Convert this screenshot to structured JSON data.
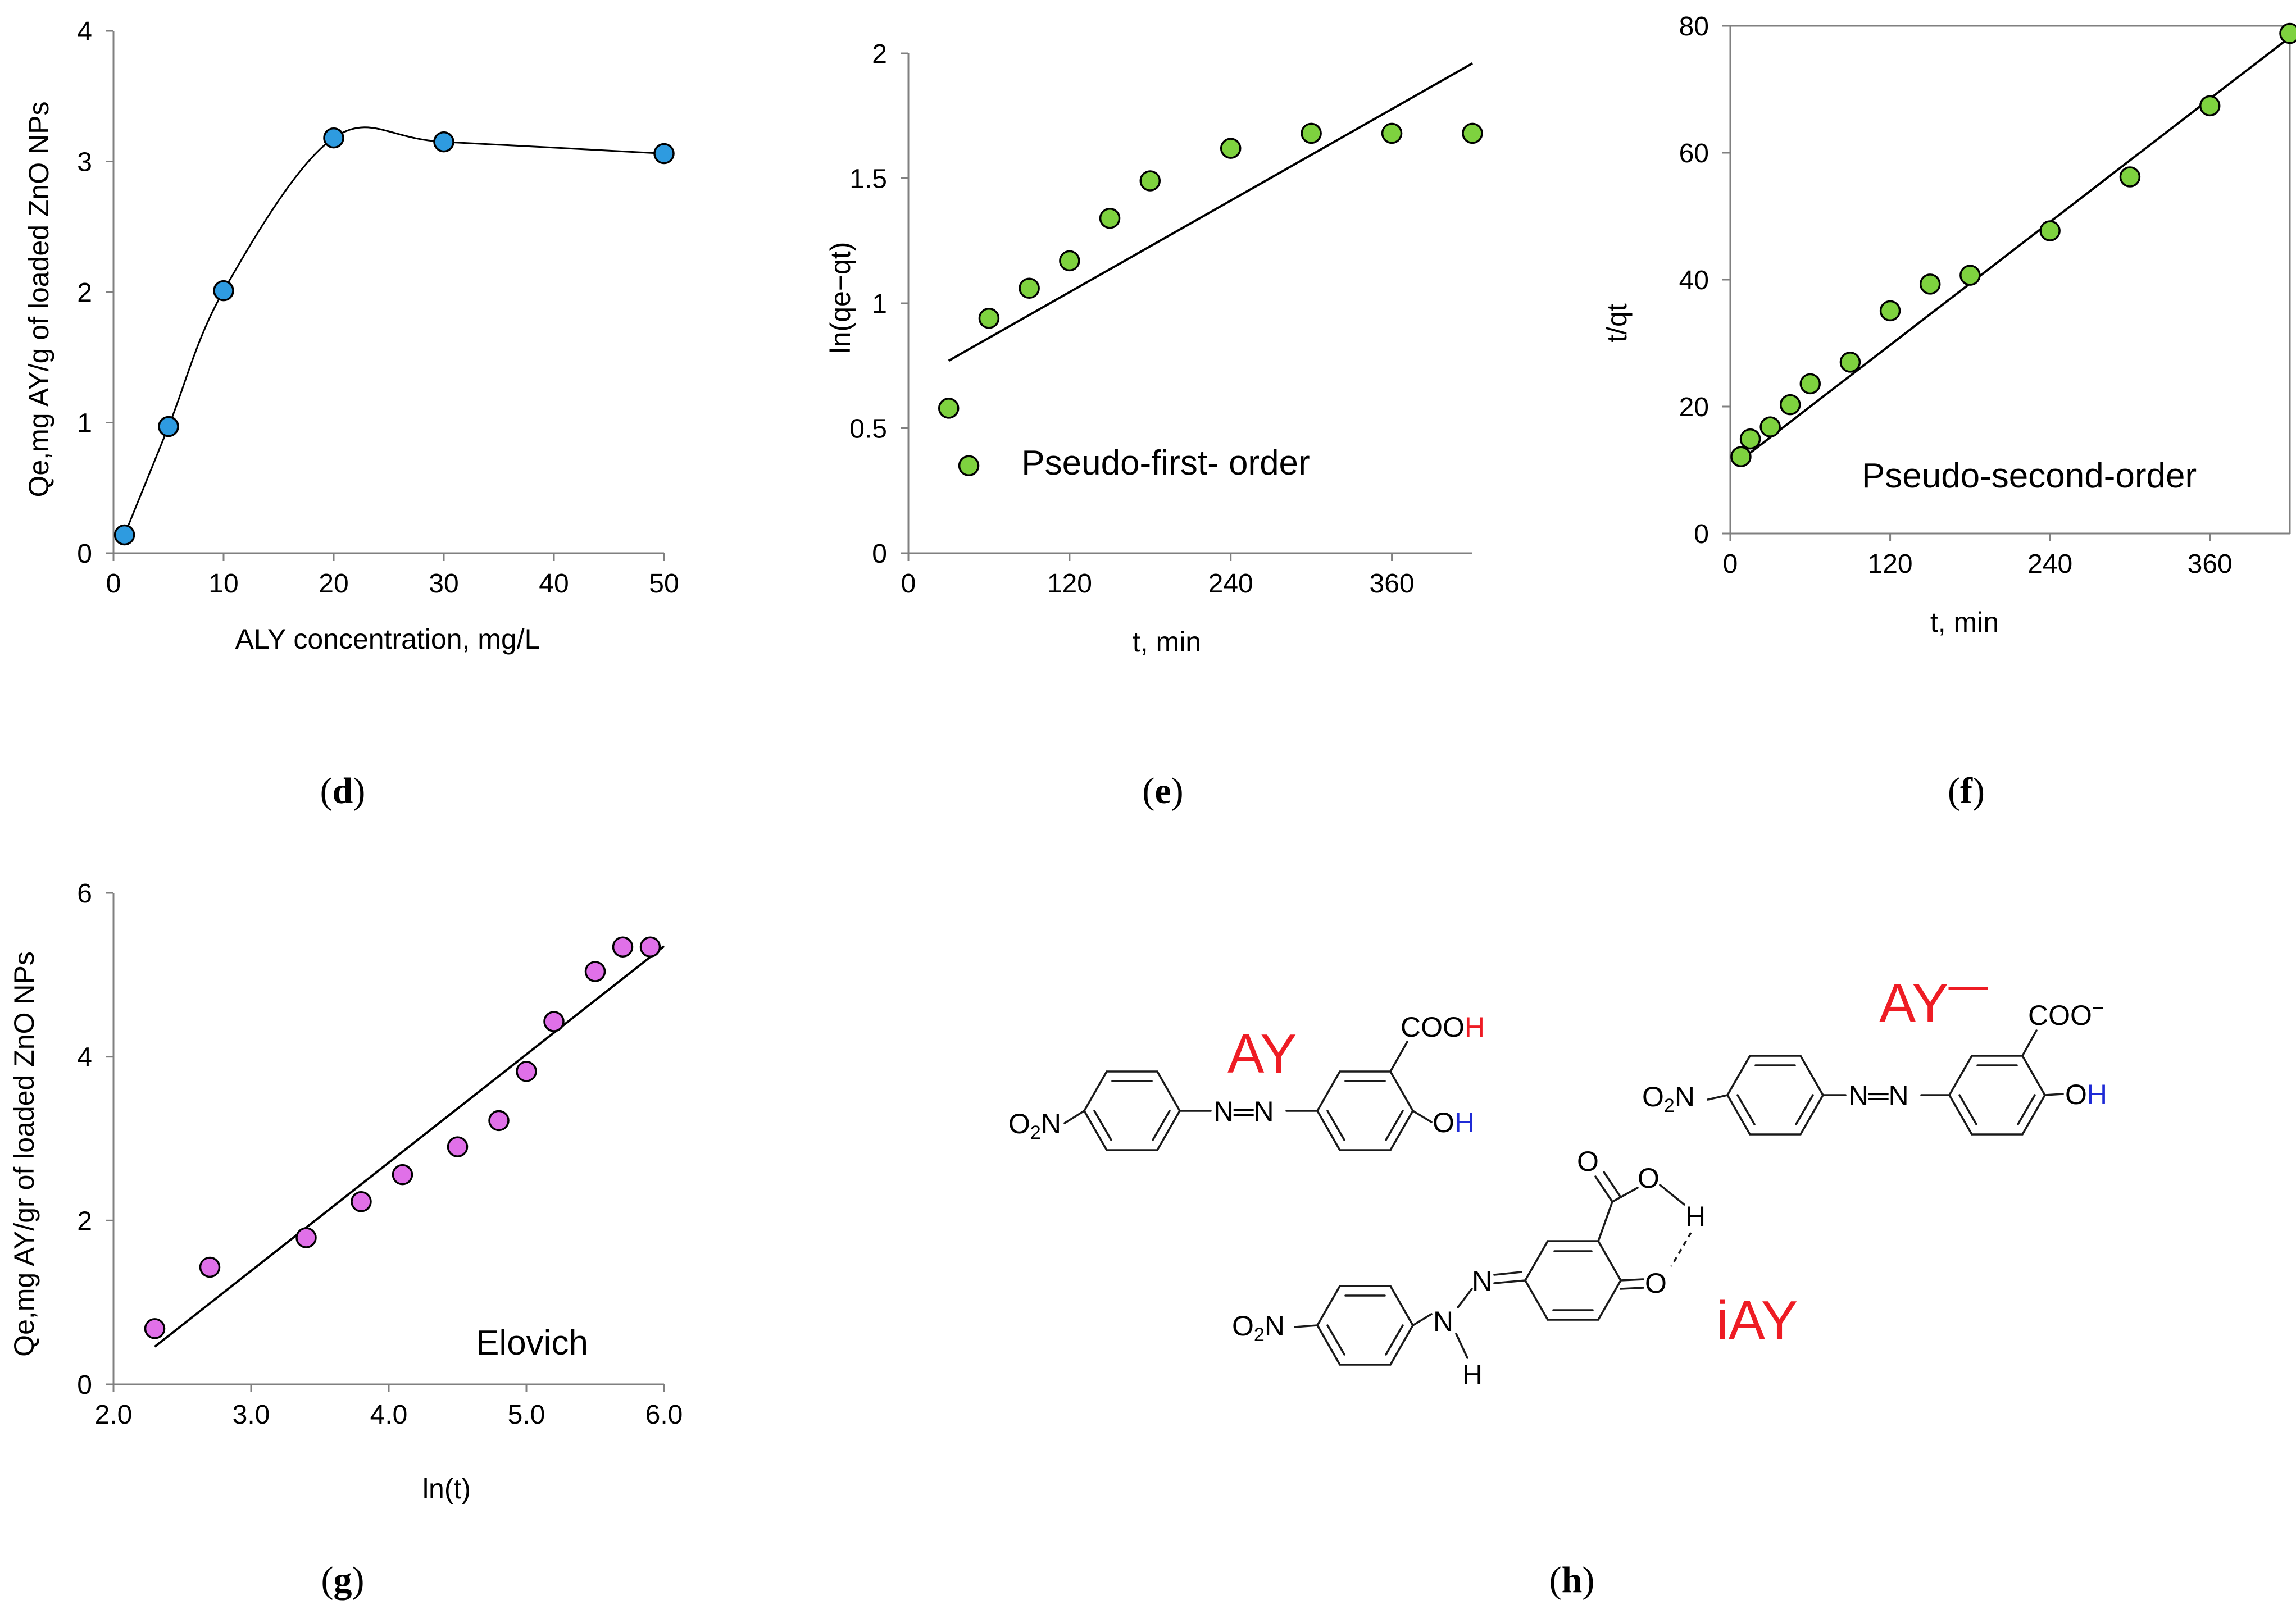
{
  "chart_data": [
    {
      "id": "d",
      "panel_label": "d",
      "type": "line",
      "style": "smoothed line with markers",
      "title": "",
      "xlabel": "ALY concentration, mg/L",
      "ylabel": "Qe,mg AY/g of loaded ZnO NPs",
      "xlim": [
        0,
        50
      ],
      "ylim": [
        0,
        4
      ],
      "xticks": [
        "0",
        "10",
        "20",
        "30",
        "40",
        "50"
      ],
      "yticks": [
        "0",
        "1",
        "2",
        "3",
        "4"
      ],
      "marker_color": "#2e9be0",
      "x": [
        1,
        5,
        10,
        20,
        30,
        50
      ],
      "y": [
        0.14,
        0.97,
        2.01,
        3.18,
        3.15,
        3.06
      ]
    },
    {
      "id": "e",
      "panel_label": "e",
      "type": "scatter",
      "title": "",
      "annotation": "Pseudo-first- order",
      "xlabel": "t, min",
      "ylabel": "ln(qe−qt)",
      "xlim": [
        0,
        420
      ],
      "ylim": [
        0,
        2
      ],
      "xticks": [
        "0",
        "120",
        "240",
        "360"
      ],
      "yticks": [
        "0",
        "0.5",
        "1",
        "1.5",
        "2"
      ],
      "marker_color": "#7ed23f",
      "x": [
        30,
        45,
        60,
        90,
        120,
        150,
        180,
        240,
        300,
        360,
        420
      ],
      "y": [
        0.58,
        0.35,
        0.94,
        1.06,
        1.17,
        1.34,
        1.49,
        1.62,
        1.68,
        1.68,
        1.68
      ],
      "trendline": {
        "x": [
          30,
          420
        ],
        "y": [
          0.77,
          1.96
        ]
      }
    },
    {
      "id": "f",
      "panel_label": "f",
      "type": "scatter",
      "title": "",
      "annotation": "Pseudo-second-order",
      "xlabel": "t, min",
      "ylabel": "t/qt",
      "xlim": [
        0,
        420
      ],
      "ylim": [
        0,
        80
      ],
      "xticks": [
        "0",
        "120",
        "240",
        "360"
      ],
      "yticks": [
        "0",
        "20",
        "40",
        "60",
        "80"
      ],
      "marker_color": "#7ed23f",
      "x": [
        8,
        15,
        30,
        45,
        60,
        90,
        120,
        150,
        180,
        240,
        300,
        360,
        420
      ],
      "y": [
        12.1,
        14.9,
        16.8,
        20.3,
        23.6,
        27.0,
        35.1,
        39.3,
        40.7,
        47.7,
        56.2,
        67.4,
        78.8
      ],
      "trendline": {
        "x": [
          8,
          420
        ],
        "y": [
          11.6,
          78.2
        ]
      }
    },
    {
      "id": "g",
      "panel_label": "g",
      "type": "scatter",
      "title": "",
      "annotation": "Elovich",
      "xlabel": "ln(t)",
      "ylabel": "Qe,mg AY/gr of loaded ZnO NPs",
      "xlim": [
        2.0,
        6.0
      ],
      "ylim": [
        0,
        6
      ],
      "xticks": [
        "2.0",
        "3.0",
        "4.0",
        "5.0",
        "6.0"
      ],
      "yticks": [
        "0",
        "2",
        "4",
        "6"
      ],
      "marker_color": "#e070e8",
      "x": [
        2.3,
        2.7,
        3.4,
        3.8,
        4.1,
        4.5,
        4.8,
        5.0,
        5.2,
        5.5,
        5.7,
        5.9
      ],
      "y": [
        0.68,
        1.43,
        1.79,
        2.23,
        2.56,
        2.9,
        3.22,
        3.82,
        4.43,
        5.04,
        5.34,
        5.34
      ],
      "trendline": {
        "x": [
          2.3,
          6.0
        ],
        "y": [
          0.46,
          5.35
        ]
      }
    }
  ],
  "panel_h": {
    "label": "h",
    "molecules": {
      "ay": {
        "name": "AY",
        "group_cooh": "COO",
        "group_cooh_h": "H",
        "group_oh": "O",
        "group_oh_h": "H",
        "group_no2": "O",
        "group_no2_sub": "2",
        "group_no2_n": "N",
        "azo": "N═N"
      },
      "ay_minus": {
        "name": "AY",
        "name_sup": "—",
        "group_coo": "COO",
        "group_coo_sup": "−",
        "group_oh": "O",
        "group_oh_h": "H",
        "group_no2": "O",
        "group_no2_sub": "2",
        "group_no2_n": "N",
        "azo": "N═N"
      },
      "iay": {
        "name": "iAY",
        "group_o1": "O",
        "group_o2": "O",
        "group_h_bond": "H",
        "group_o3": "O",
        "group_n": "N",
        "group_nh_n": "N",
        "group_nh_h": "H",
        "group_no2": "O",
        "group_no2_sub": "2",
        "group_no2_n": "N"
      }
    },
    "colors": {
      "red": "#ee1c24",
      "blue": "#1f2bd6"
    }
  }
}
